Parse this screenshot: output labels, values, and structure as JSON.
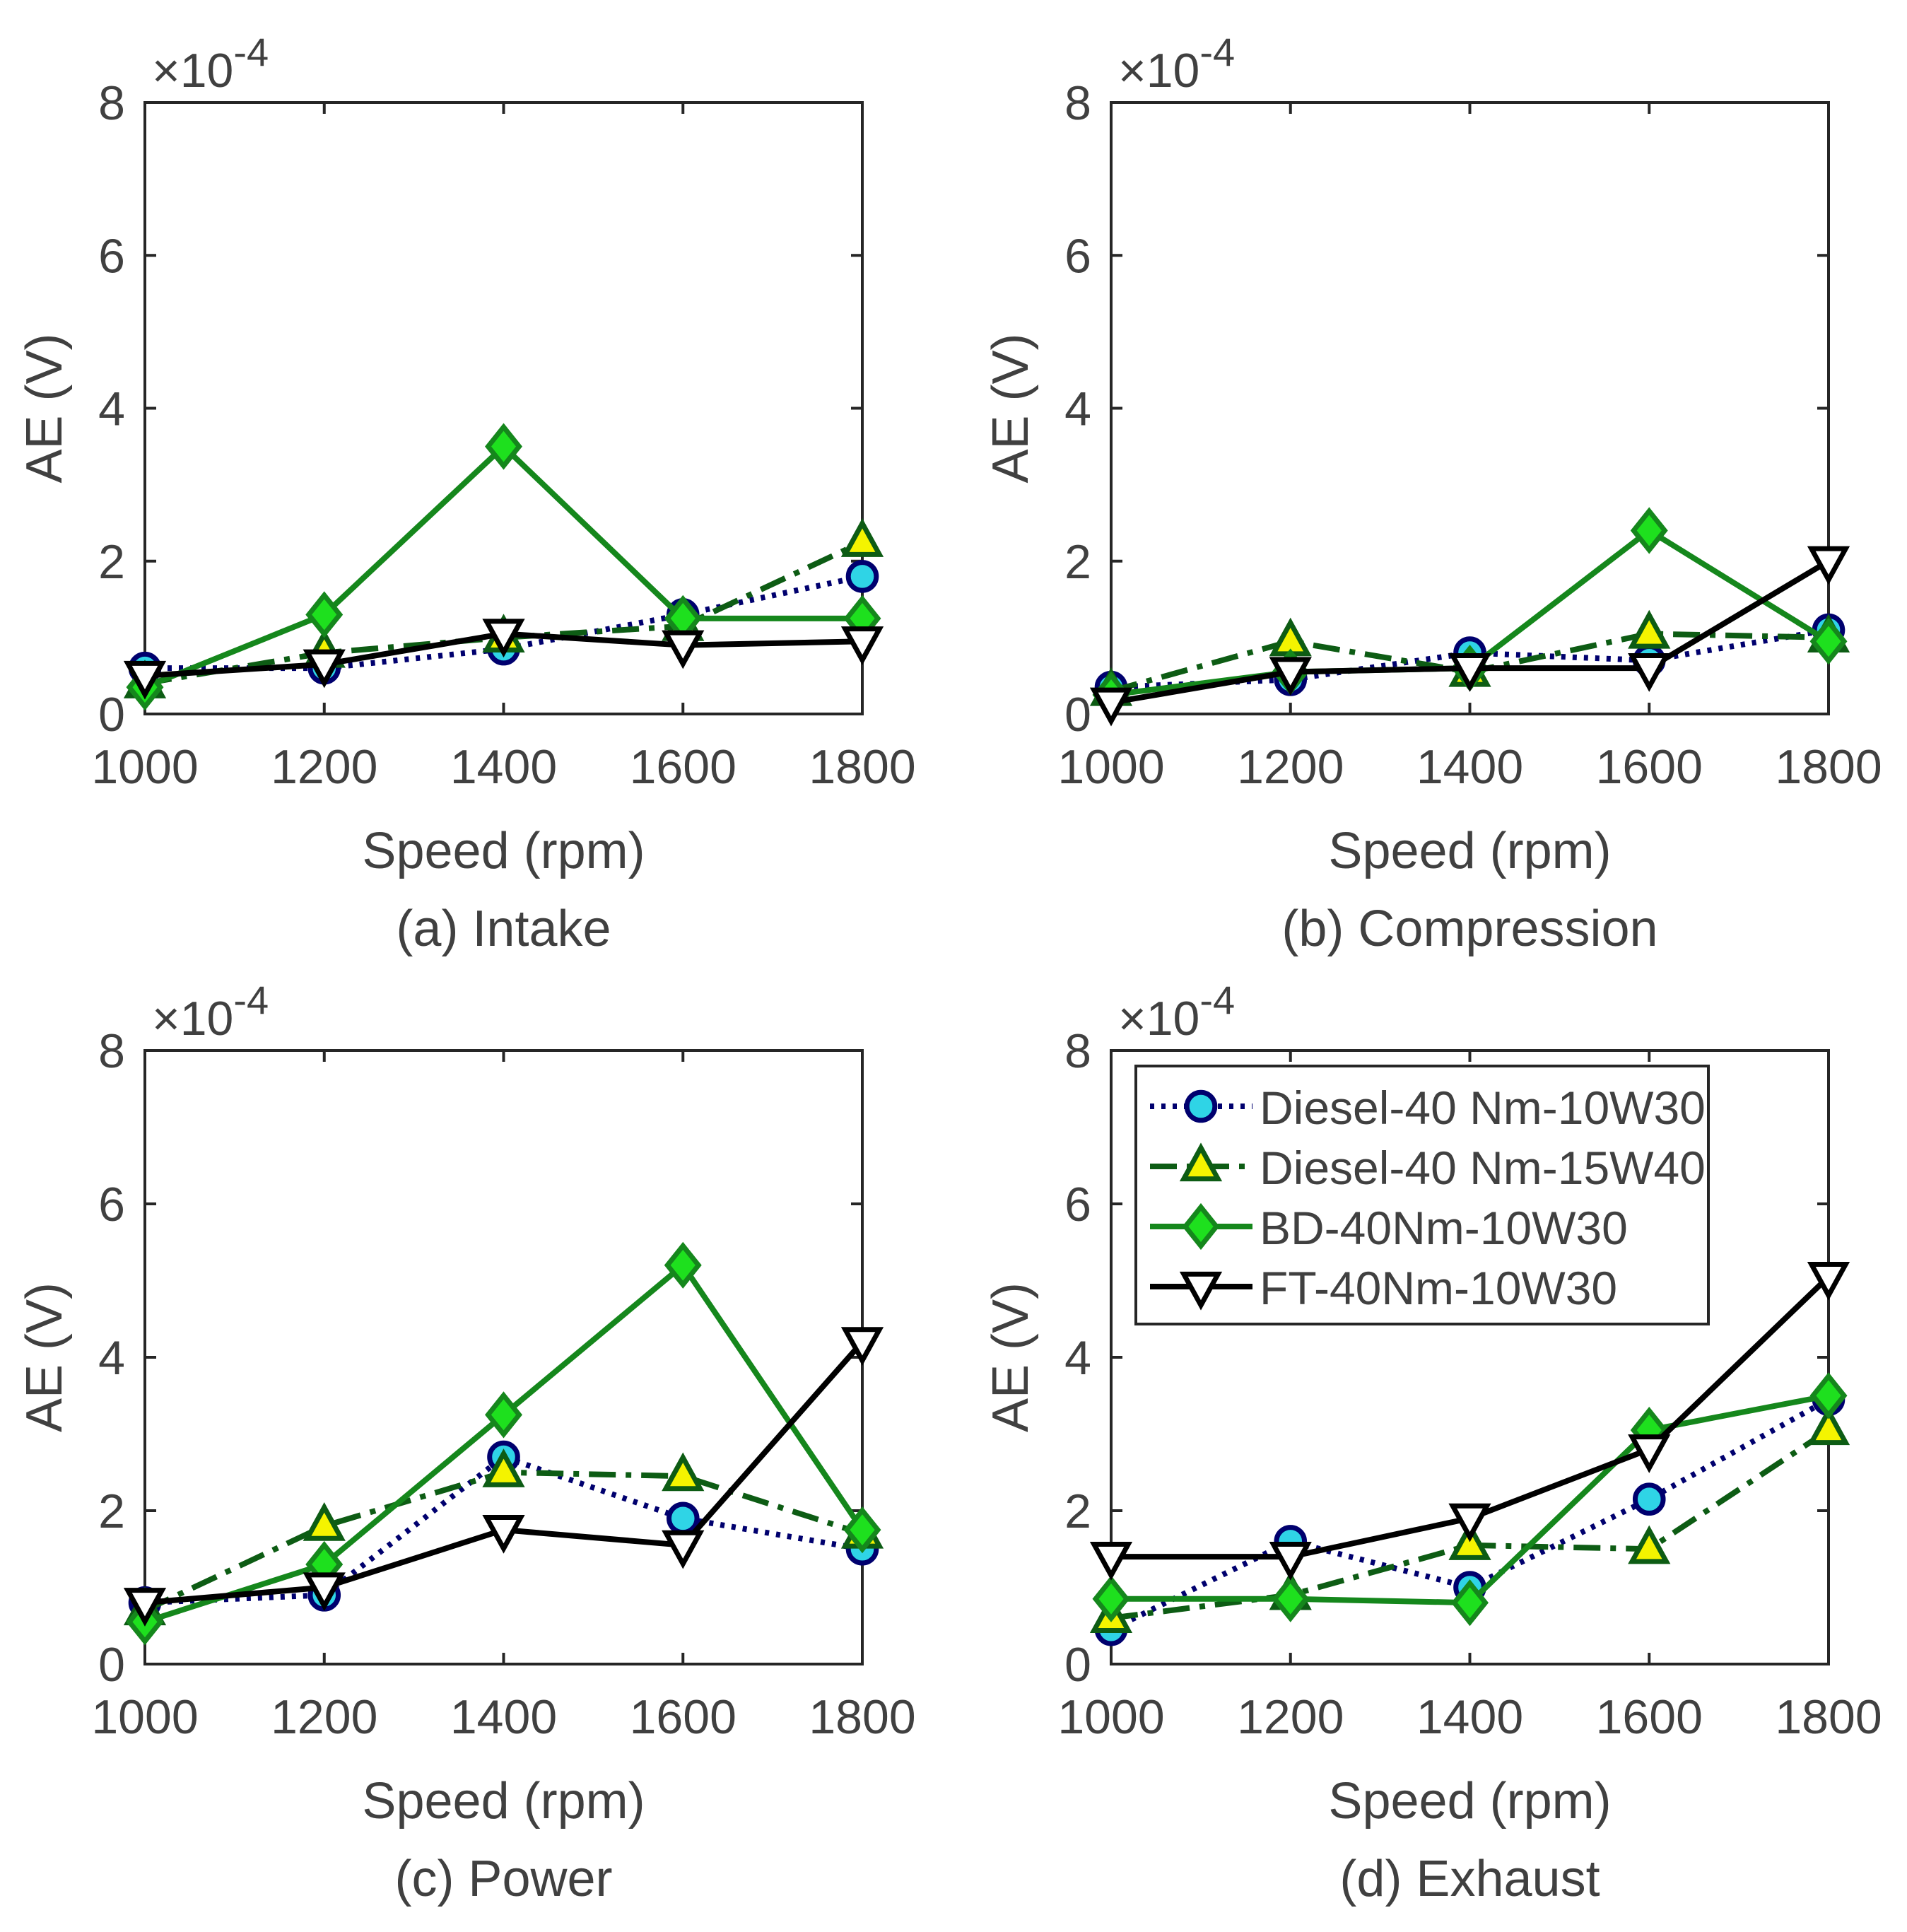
{
  "chart_data": [
    {
      "type": "line",
      "caption": "(a) Intake",
      "xlabel": "Speed (rpm)",
      "ylabel": "AE (V)",
      "exponent_label": "×10",
      "exponent_power": "-4",
      "x": [
        1000,
        1200,
        1400,
        1600,
        1800
      ],
      "xlim": [
        1000,
        1800
      ],
      "ylim": [
        0,
        8
      ],
      "xticks": [
        "1000",
        "1200",
        "1400",
        "1600",
        "1800"
      ],
      "yticks": [
        "0",
        "2",
        "4",
        "6",
        "8"
      ],
      "series": [
        {
          "name": "Diesel-40 Nm-10W30",
          "values": [
            0.6,
            0.6,
            0.85,
            1.3,
            1.8
          ]
        },
        {
          "name": "Diesel-40 Nm-15W40",
          "values": [
            0.4,
            0.8,
            1.0,
            1.15,
            2.25
          ]
        },
        {
          "name": "BD-40Nm-10W30",
          "values": [
            0.35,
            1.3,
            3.5,
            1.25,
            1.25
          ]
        },
        {
          "name": "FT-40Nm-10W30",
          "values": [
            0.5,
            0.65,
            1.05,
            0.9,
            0.95
          ]
        }
      ]
    },
    {
      "type": "line",
      "caption": "(b) Compression",
      "xlabel": "Speed (rpm)",
      "ylabel": "AE (V)",
      "exponent_label": "×10",
      "exponent_power": "-4",
      "x": [
        1000,
        1200,
        1400,
        1600,
        1800
      ],
      "xlim": [
        1000,
        1800
      ],
      "ylim": [
        0,
        8
      ],
      "xticks": [
        "1000",
        "1200",
        "1400",
        "1600",
        "1800"
      ],
      "yticks": [
        "0",
        "2",
        "4",
        "6",
        "8"
      ],
      "series": [
        {
          "name": "Diesel-40 Nm-10W30",
          "values": [
            0.35,
            0.45,
            0.8,
            0.7,
            1.1
          ]
        },
        {
          "name": "Diesel-40 Nm-15W40",
          "values": [
            0.3,
            0.95,
            0.55,
            1.05,
            1.0
          ]
        },
        {
          "name": "BD-40Nm-10W30",
          "values": [
            0.25,
            0.55,
            0.6,
            2.4,
            0.95
          ]
        },
        {
          "name": "FT-40Nm-10W30",
          "values": [
            0.15,
            0.55,
            0.6,
            0.6,
            2.0
          ]
        }
      ]
    },
    {
      "type": "line",
      "caption": "(c) Power",
      "xlabel": "Speed (rpm)",
      "ylabel": "AE (V)",
      "exponent_label": "×10",
      "exponent_power": "-4",
      "x": [
        1000,
        1200,
        1400,
        1600,
        1800
      ],
      "xlim": [
        1000,
        1800
      ],
      "ylim": [
        0,
        8
      ],
      "xticks": [
        "1000",
        "1200",
        "1400",
        "1600",
        "1800"
      ],
      "yticks": [
        "0",
        "2",
        "4",
        "6",
        "8"
      ],
      "series": [
        {
          "name": "Diesel-40 Nm-10W30",
          "values": [
            0.8,
            0.9,
            2.7,
            1.9,
            1.5
          ]
        },
        {
          "name": "Diesel-40 Nm-15W40",
          "values": [
            0.7,
            1.8,
            2.5,
            2.45,
            1.7
          ]
        },
        {
          "name": "BD-40Nm-10W30",
          "values": [
            0.55,
            1.3,
            3.25,
            5.2,
            1.75
          ]
        },
        {
          "name": "FT-40Nm-10W30",
          "values": [
            0.8,
            1.0,
            1.75,
            1.55,
            4.2
          ]
        }
      ]
    },
    {
      "type": "line",
      "caption": "(d) Exhaust",
      "xlabel": "Speed (rpm)",
      "ylabel": "AE (V)",
      "exponent_label": "×10",
      "exponent_power": "-4",
      "x": [
        1000,
        1200,
        1400,
        1600,
        1800
      ],
      "xlim": [
        1000,
        1800
      ],
      "ylim": [
        0,
        8
      ],
      "xticks": [
        "1000",
        "1200",
        "1400",
        "1600",
        "1800"
      ],
      "yticks": [
        "0",
        "2",
        "4",
        "6",
        "8"
      ],
      "legend": "top-left",
      "series": [
        {
          "name": "Diesel-40 Nm-10W30",
          "values": [
            0.45,
            1.6,
            1.0,
            2.15,
            3.45
          ]
        },
        {
          "name": "Diesel-40 Nm-15W40",
          "values": [
            0.6,
            0.9,
            1.55,
            1.5,
            3.05
          ]
        },
        {
          "name": "BD-40Nm-10W30",
          "values": [
            0.85,
            0.85,
            0.8,
            3.05,
            3.5
          ]
        },
        {
          "name": "FT-40Nm-10W30",
          "values": [
            1.4,
            1.4,
            1.9,
            2.8,
            5.05
          ]
        }
      ]
    }
  ],
  "styles": [
    {
      "marker": "circle",
      "line": "#00006e",
      "dash": "6 10",
      "marker_fill": "#2fd4e6",
      "marker_edge": "#00006e"
    },
    {
      "marker": "triangle-up",
      "line": "#0d5c14",
      "dash": "38 14 8 14",
      "marker_fill": "#f4f400",
      "marker_edge": "#0d5c14"
    },
    {
      "marker": "diamond",
      "line": "#15871c",
      "dash": "",
      "marker_fill": "#1ee01e",
      "marker_edge": "#15871c"
    },
    {
      "marker": "triangle-down",
      "line": "#000000",
      "dash": "",
      "marker_fill": "#ffffff",
      "marker_edge": "#000000"
    }
  ]
}
